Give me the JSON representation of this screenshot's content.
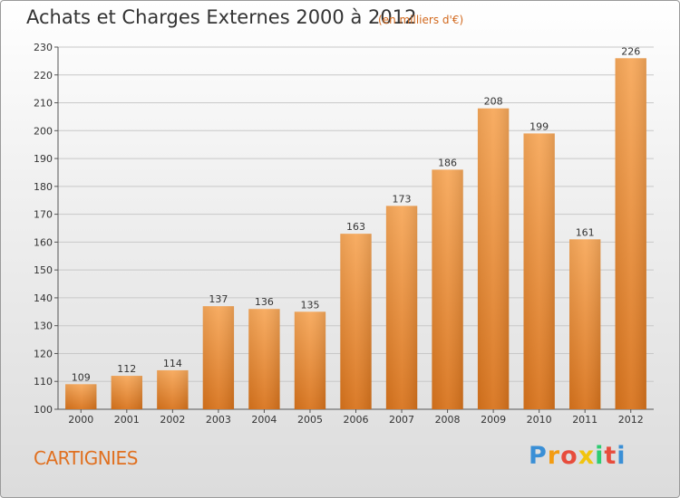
{
  "title": "Achats et Charges Externes 2000 à 2012",
  "subtitle": "(en milliers d'€)",
  "commune": "CARTIGNIES",
  "logo": {
    "text": "Proxiti",
    "letters": [
      {
        "char": "P",
        "color": "#3a8fd6"
      },
      {
        "char": "r",
        "color": "#f39c12"
      },
      {
        "char": "o",
        "color": "#e74c3c"
      },
      {
        "char": "x",
        "color": "#f1c40f"
      },
      {
        "char": "i",
        "color": "#2ecc71"
      },
      {
        "char": "t",
        "color": "#e74c3c"
      },
      {
        "char": "i",
        "color": "#3a8fd6"
      }
    ]
  },
  "colors": {
    "bar_top": "#f7a85a",
    "bar_bottom": "#d8731c",
    "grid": "#c8c8c8",
    "title": "#333333",
    "subtitle": "#d2691e",
    "commune": "#e07020"
  },
  "chart_data": {
    "type": "bar",
    "title": "Achats et Charges Externes 2000 à 2012",
    "subtitle": "(en milliers d'€)",
    "xlabel": "",
    "ylabel": "",
    "categories": [
      "2000",
      "2001",
      "2002",
      "2003",
      "2004",
      "2005",
      "2006",
      "2007",
      "2008",
      "2009",
      "2010",
      "2011",
      "2012"
    ],
    "values": [
      109,
      112,
      114,
      137,
      136,
      135,
      163,
      173,
      186,
      208,
      199,
      161,
      226
    ],
    "data_labels": [
      "109",
      "112",
      "114",
      "137",
      "136",
      "135",
      "163",
      "173",
      "186",
      "208",
      "199",
      "161",
      "226"
    ],
    "ylim": [
      100,
      230
    ],
    "yticks": [
      100,
      110,
      120,
      130,
      140,
      150,
      160,
      170,
      180,
      190,
      200,
      210,
      220,
      230
    ],
    "grid": true,
    "legend": "none"
  }
}
